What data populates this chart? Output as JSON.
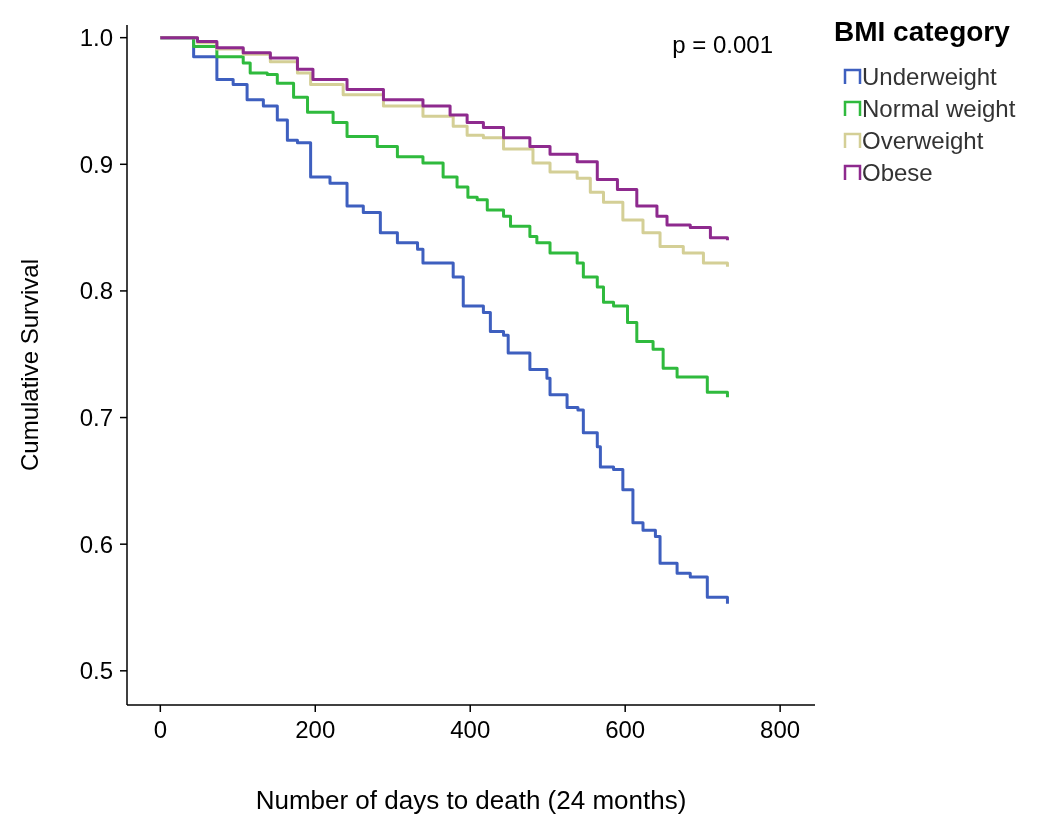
{
  "chart_data": {
    "type": "step",
    "xlabel": "Number of days to death (24 months)",
    "ylabel": "Cumulative Survival",
    "legend_title": "BMI category",
    "annotations": [
      "p = 0.001"
    ],
    "xlim": [
      -43,
      845
    ],
    "xticks": [
      0,
      200,
      400,
      600,
      800
    ],
    "ylim": [
      0.473,
      1.01
    ],
    "yticks": [
      {
        "value": 0.5,
        "label": "0.5"
      },
      {
        "value": 0.6,
        "label": "0.6"
      },
      {
        "value": 0.7,
        "label": "0.7"
      },
      {
        "value": 0.8,
        "label": "0.8"
      },
      {
        "value": 0.9,
        "label": "0.9"
      },
      {
        "value": 1.0,
        "label": "1.0"
      }
    ],
    "grid": false,
    "legend": "top right",
    "line_style": "solid",
    "marker": "none",
    "series": [
      {
        "name": "Underweight",
        "color": "#3e5fbf",
        "x": [
          0,
          30,
          43,
          73,
          94,
          112,
          133,
          151,
          164,
          177,
          194,
          219,
          241,
          262,
          284,
          306,
          332,
          339,
          378,
          391,
          417,
          426,
          443,
          449,
          477,
          499,
          503,
          525,
          539,
          546,
          564,
          568,
          585,
          597,
          610,
          623,
          639,
          645,
          667,
          684,
          706,
          732
        ],
        "values": [
          1.0,
          1.0,
          0.985,
          0.967,
          0.963,
          0.951,
          0.946,
          0.935,
          0.919,
          0.917,
          0.89,
          0.885,
          0.867,
          0.862,
          0.846,
          0.838,
          0.833,
          0.822,
          0.811,
          0.788,
          0.783,
          0.768,
          0.765,
          0.751,
          0.738,
          0.731,
          0.718,
          0.708,
          0.706,
          0.688,
          0.677,
          0.661,
          0.659,
          0.643,
          0.617,
          0.611,
          0.606,
          0.585,
          0.577,
          0.574,
          0.558,
          0.553
        ]
      },
      {
        "name": "Normal weight",
        "color": "#2fba3d",
        "x": [
          0,
          43,
          73,
          107,
          116,
          138,
          151,
          172,
          190,
          223,
          241,
          280,
          306,
          339,
          365,
          383,
          397,
          409,
          422,
          443,
          452,
          477,
          486,
          503,
          538,
          546,
          564,
          572,
          585,
          603,
          615,
          636,
          649,
          667,
          706,
          732
        ],
        "values": [
          1.0,
          0.993,
          0.985,
          0.98,
          0.972,
          0.971,
          0.964,
          0.953,
          0.941,
          0.933,
          0.922,
          0.914,
          0.906,
          0.901,
          0.89,
          0.882,
          0.874,
          0.872,
          0.864,
          0.859,
          0.851,
          0.843,
          0.838,
          0.83,
          0.822,
          0.811,
          0.803,
          0.791,
          0.788,
          0.775,
          0.76,
          0.754,
          0.739,
          0.732,
          0.72,
          0.716
        ]
      },
      {
        "name": "Overweight",
        "color": "#d4cf96",
        "x": [
          0,
          30,
          48,
          73,
          107,
          142,
          177,
          194,
          236,
          288,
          339,
          378,
          396,
          417,
          443,
          481,
          503,
          538,
          555,
          572,
          597,
          623,
          645,
          675,
          701,
          732
        ],
        "values": [
          1.0,
          1.0,
          0.996,
          0.991,
          0.987,
          0.981,
          0.972,
          0.963,
          0.955,
          0.946,
          0.938,
          0.93,
          0.923,
          0.921,
          0.912,
          0.901,
          0.894,
          0.889,
          0.878,
          0.87,
          0.856,
          0.846,
          0.835,
          0.83,
          0.822,
          0.819
        ]
      },
      {
        "name": "Obese",
        "color": "#8e2a8e",
        "x": [
          0,
          30,
          48,
          73,
          107,
          142,
          177,
          197,
          241,
          288,
          339,
          374,
          396,
          417,
          443,
          477,
          503,
          538,
          564,
          590,
          615,
          641,
          654,
          684,
          710,
          732
        ],
        "values": [
          1.0,
          1.0,
          0.997,
          0.992,
          0.988,
          0.984,
          0.975,
          0.967,
          0.959,
          0.951,
          0.946,
          0.939,
          0.933,
          0.929,
          0.921,
          0.914,
          0.908,
          0.902,
          0.888,
          0.88,
          0.867,
          0.859,
          0.852,
          0.85,
          0.842,
          0.84
        ]
      }
    ]
  }
}
